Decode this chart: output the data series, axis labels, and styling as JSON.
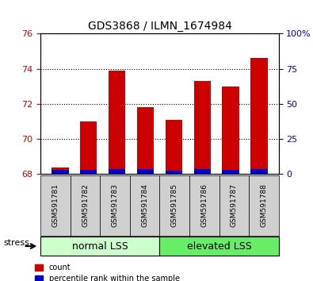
{
  "title": "GDS3868 / ILMN_1674984",
  "categories": [
    "GSM591781",
    "GSM591782",
    "GSM591783",
    "GSM591784",
    "GSM591785",
    "GSM591786",
    "GSM591787",
    "GSM591788"
  ],
  "red_values": [
    68.4,
    71.0,
    73.9,
    71.8,
    71.1,
    73.3,
    73.0,
    74.6
  ],
  "blue_values": [
    0.25,
    0.25,
    0.28,
    0.28,
    0.22,
    0.28,
    0.25,
    0.28
  ],
  "baseline": 68.0,
  "ylim_left": [
    68,
    76
  ],
  "yticks_left": [
    68,
    70,
    72,
    74,
    76
  ],
  "ylim_right": [
    0,
    100
  ],
  "yticks_right": [
    0,
    25,
    50,
    75,
    100
  ],
  "ytick_labels_right": [
    "0",
    "25",
    "50",
    "75",
    "100%"
  ],
  "normal_label": "normal LSS",
  "elevated_label": "elevated LSS",
  "stress_label": "stress",
  "bar_width": 0.6,
  "red_color": "#cc0000",
  "blue_color": "#0000cc",
  "normal_bg": "#ccffcc",
  "elevated_bg": "#66ee66",
  "tick_bg": "#d0d0d0",
  "left_tick_color": "#cc0000",
  "right_tick_color": "#0000cc"
}
